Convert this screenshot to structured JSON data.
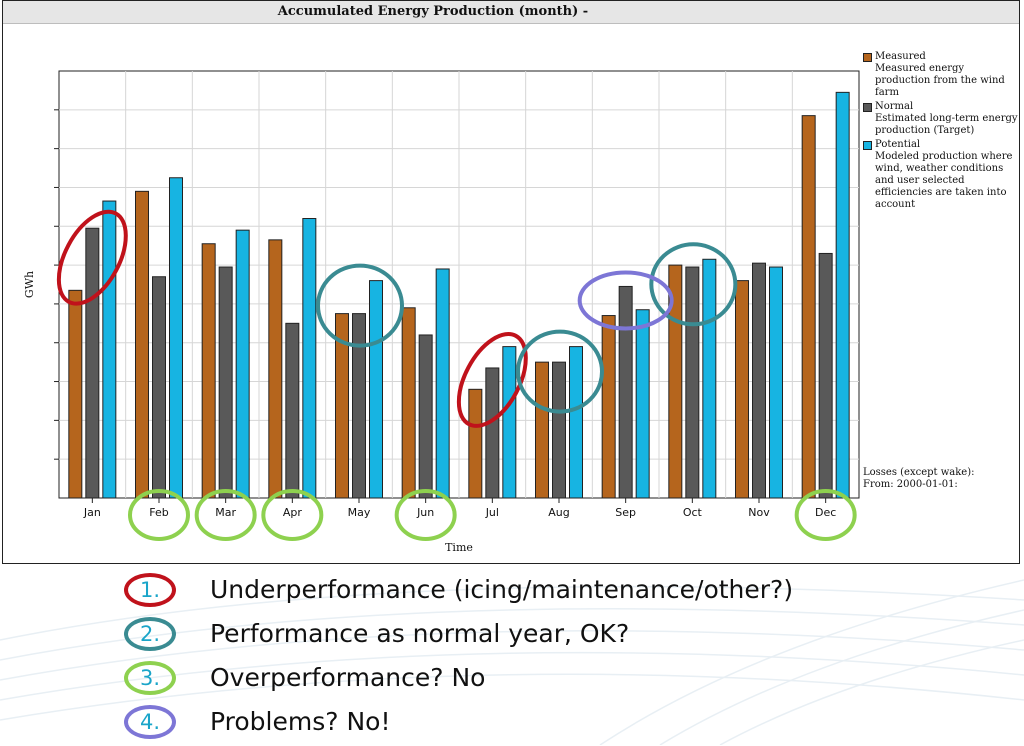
{
  "chart_data": {
    "type": "bar",
    "title": "Accumulated Energy Production (month) -",
    "xlabel": "Time",
    "ylabel": "GWh",
    "ylim": [
      0,
      11
    ],
    "grid": true,
    "legend_position": "right",
    "categories": [
      "Jan",
      "Feb",
      "Mar",
      "Apr",
      "May",
      "Jun",
      "Jul",
      "Aug",
      "Sep",
      "Oct",
      "Nov",
      "Dec"
    ],
    "series": [
      {
        "name": "Measured",
        "description": "Measured energy production from the wind farm",
        "color": "#b5651d",
        "values": [
          5.35,
          7.9,
          6.55,
          6.65,
          4.75,
          4.9,
          2.8,
          3.5,
          4.7,
          6.0,
          5.6,
          9.85
        ]
      },
      {
        "name": "Normal",
        "description": "Estimated long-term energy production (Target)",
        "color": "#595959",
        "values": [
          6.95,
          5.7,
          5.95,
          4.5,
          4.75,
          4.2,
          3.35,
          3.5,
          5.45,
          5.95,
          6.05,
          6.3
        ]
      },
      {
        "name": "Potential",
        "description": "Modeled production where wind, weather conditions and user selected efficiencies are taken into account",
        "color": "#17b4e2",
        "values": [
          7.65,
          8.25,
          6.9,
          7.2,
          5.6,
          5.9,
          3.9,
          3.9,
          4.85,
          6.15,
          5.95,
          10.45
        ]
      }
    ],
    "footnote": [
      "Losses (except wake):",
      "From: 2000-01-01:"
    ],
    "highlights": [
      {
        "category": "Jan",
        "type": 1
      },
      {
        "category": "Jul",
        "type": 1
      },
      {
        "category": "May",
        "type": 2
      },
      {
        "category": "Aug",
        "type": 2
      },
      {
        "category": "Oct",
        "type": 2
      },
      {
        "category": "Sep",
        "type": 4
      },
      {
        "category": "Feb",
        "type": 3
      },
      {
        "category": "Mar",
        "type": 3
      },
      {
        "category": "Apr",
        "type": 3
      },
      {
        "category": "Jun",
        "type": 3
      },
      {
        "category": "Dec",
        "type": 3
      }
    ]
  },
  "annotation_key": [
    {
      "number": "1.",
      "text": "Underperformance (icing/maintenance/other?)",
      "color": "#c0121b"
    },
    {
      "number": "2.",
      "text": "Performance as normal year, OK?",
      "color": "#3a8b92"
    },
    {
      "number": "3.",
      "text": "Overperformance? No",
      "color": "#8ed14f"
    },
    {
      "number": "4.",
      "text": "Problems? No!",
      "color": "#7d76d6"
    }
  ]
}
